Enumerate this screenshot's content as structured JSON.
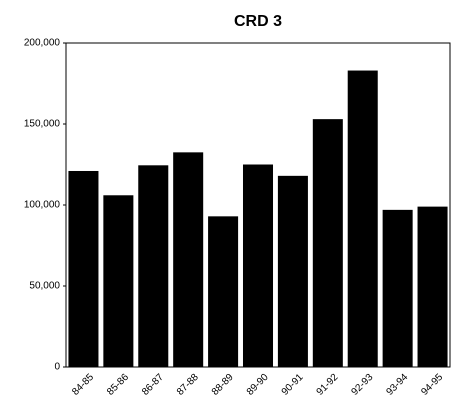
{
  "chart_data": {
    "type": "bar",
    "title": "CRD 3",
    "categories": [
      "84-85",
      "85-86",
      "86-87",
      "87-88",
      "88-89",
      "89-90",
      "90-91",
      "91-92",
      "92-93",
      "93-94",
      "94-95"
    ],
    "values": [
      121000,
      106000,
      124500,
      132500,
      93000,
      125000,
      118000,
      153000,
      183000,
      97000,
      99000
    ],
    "color": "#000000",
    "ylim": [
      0,
      200000
    ],
    "yticks": [
      0,
      {
        "value": 50000,
        "label": "50,000"
      },
      {
        "value": 100000,
        "label": "100,000"
      },
      {
        "value": 150000,
        "label": "150,000"
      },
      {
        "value": 200000,
        "label": "200,000"
      }
    ]
  }
}
